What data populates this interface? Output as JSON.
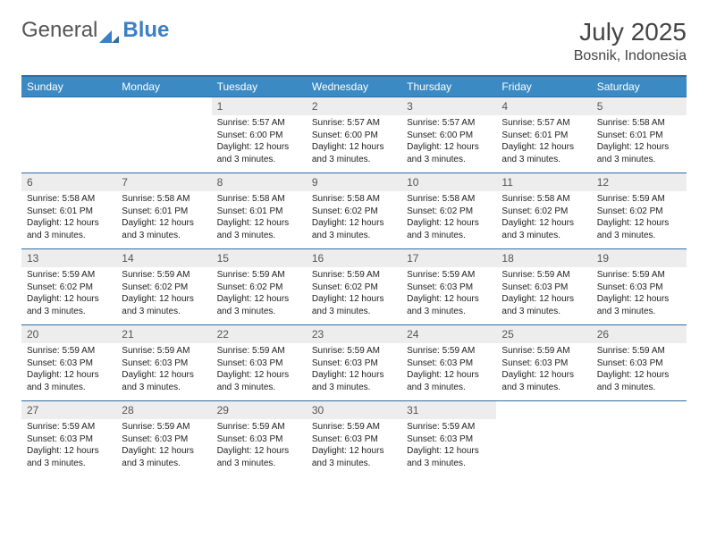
{
  "brand": {
    "part1": "General",
    "part2": "Blue"
  },
  "title": "July 2025",
  "location": "Bosnik, Indonesia",
  "colors": {
    "header_bg": "#3b8ac4",
    "header_fg": "#ffffff",
    "border": "#2e6da4",
    "daynum_bg": "#ededed",
    "text": "#222222"
  },
  "day_headers": [
    "Sunday",
    "Monday",
    "Tuesday",
    "Wednesday",
    "Thursday",
    "Friday",
    "Saturday"
  ],
  "weeks": [
    [
      null,
      null,
      {
        "n": "1",
        "sunrise": "Sunrise: 5:57 AM",
        "sunset": "Sunset: 6:00 PM",
        "day1": "Daylight: 12 hours",
        "day2": "and 3 minutes."
      },
      {
        "n": "2",
        "sunrise": "Sunrise: 5:57 AM",
        "sunset": "Sunset: 6:00 PM",
        "day1": "Daylight: 12 hours",
        "day2": "and 3 minutes."
      },
      {
        "n": "3",
        "sunrise": "Sunrise: 5:57 AM",
        "sunset": "Sunset: 6:00 PM",
        "day1": "Daylight: 12 hours",
        "day2": "and 3 minutes."
      },
      {
        "n": "4",
        "sunrise": "Sunrise: 5:57 AM",
        "sunset": "Sunset: 6:01 PM",
        "day1": "Daylight: 12 hours",
        "day2": "and 3 minutes."
      },
      {
        "n": "5",
        "sunrise": "Sunrise: 5:58 AM",
        "sunset": "Sunset: 6:01 PM",
        "day1": "Daylight: 12 hours",
        "day2": "and 3 minutes."
      }
    ],
    [
      {
        "n": "6",
        "sunrise": "Sunrise: 5:58 AM",
        "sunset": "Sunset: 6:01 PM",
        "day1": "Daylight: 12 hours",
        "day2": "and 3 minutes."
      },
      {
        "n": "7",
        "sunrise": "Sunrise: 5:58 AM",
        "sunset": "Sunset: 6:01 PM",
        "day1": "Daylight: 12 hours",
        "day2": "and 3 minutes."
      },
      {
        "n": "8",
        "sunrise": "Sunrise: 5:58 AM",
        "sunset": "Sunset: 6:01 PM",
        "day1": "Daylight: 12 hours",
        "day2": "and 3 minutes."
      },
      {
        "n": "9",
        "sunrise": "Sunrise: 5:58 AM",
        "sunset": "Sunset: 6:02 PM",
        "day1": "Daylight: 12 hours",
        "day2": "and 3 minutes."
      },
      {
        "n": "10",
        "sunrise": "Sunrise: 5:58 AM",
        "sunset": "Sunset: 6:02 PM",
        "day1": "Daylight: 12 hours",
        "day2": "and 3 minutes."
      },
      {
        "n": "11",
        "sunrise": "Sunrise: 5:58 AM",
        "sunset": "Sunset: 6:02 PM",
        "day1": "Daylight: 12 hours",
        "day2": "and 3 minutes."
      },
      {
        "n": "12",
        "sunrise": "Sunrise: 5:59 AM",
        "sunset": "Sunset: 6:02 PM",
        "day1": "Daylight: 12 hours",
        "day2": "and 3 minutes."
      }
    ],
    [
      {
        "n": "13",
        "sunrise": "Sunrise: 5:59 AM",
        "sunset": "Sunset: 6:02 PM",
        "day1": "Daylight: 12 hours",
        "day2": "and 3 minutes."
      },
      {
        "n": "14",
        "sunrise": "Sunrise: 5:59 AM",
        "sunset": "Sunset: 6:02 PM",
        "day1": "Daylight: 12 hours",
        "day2": "and 3 minutes."
      },
      {
        "n": "15",
        "sunrise": "Sunrise: 5:59 AM",
        "sunset": "Sunset: 6:02 PM",
        "day1": "Daylight: 12 hours",
        "day2": "and 3 minutes."
      },
      {
        "n": "16",
        "sunrise": "Sunrise: 5:59 AM",
        "sunset": "Sunset: 6:02 PM",
        "day1": "Daylight: 12 hours",
        "day2": "and 3 minutes."
      },
      {
        "n": "17",
        "sunrise": "Sunrise: 5:59 AM",
        "sunset": "Sunset: 6:03 PM",
        "day1": "Daylight: 12 hours",
        "day2": "and 3 minutes."
      },
      {
        "n": "18",
        "sunrise": "Sunrise: 5:59 AM",
        "sunset": "Sunset: 6:03 PM",
        "day1": "Daylight: 12 hours",
        "day2": "and 3 minutes."
      },
      {
        "n": "19",
        "sunrise": "Sunrise: 5:59 AM",
        "sunset": "Sunset: 6:03 PM",
        "day1": "Daylight: 12 hours",
        "day2": "and 3 minutes."
      }
    ],
    [
      {
        "n": "20",
        "sunrise": "Sunrise: 5:59 AM",
        "sunset": "Sunset: 6:03 PM",
        "day1": "Daylight: 12 hours",
        "day2": "and 3 minutes."
      },
      {
        "n": "21",
        "sunrise": "Sunrise: 5:59 AM",
        "sunset": "Sunset: 6:03 PM",
        "day1": "Daylight: 12 hours",
        "day2": "and 3 minutes."
      },
      {
        "n": "22",
        "sunrise": "Sunrise: 5:59 AM",
        "sunset": "Sunset: 6:03 PM",
        "day1": "Daylight: 12 hours",
        "day2": "and 3 minutes."
      },
      {
        "n": "23",
        "sunrise": "Sunrise: 5:59 AM",
        "sunset": "Sunset: 6:03 PM",
        "day1": "Daylight: 12 hours",
        "day2": "and 3 minutes."
      },
      {
        "n": "24",
        "sunrise": "Sunrise: 5:59 AM",
        "sunset": "Sunset: 6:03 PM",
        "day1": "Daylight: 12 hours",
        "day2": "and 3 minutes."
      },
      {
        "n": "25",
        "sunrise": "Sunrise: 5:59 AM",
        "sunset": "Sunset: 6:03 PM",
        "day1": "Daylight: 12 hours",
        "day2": "and 3 minutes."
      },
      {
        "n": "26",
        "sunrise": "Sunrise: 5:59 AM",
        "sunset": "Sunset: 6:03 PM",
        "day1": "Daylight: 12 hours",
        "day2": "and 3 minutes."
      }
    ],
    [
      {
        "n": "27",
        "sunrise": "Sunrise: 5:59 AM",
        "sunset": "Sunset: 6:03 PM",
        "day1": "Daylight: 12 hours",
        "day2": "and 3 minutes."
      },
      {
        "n": "28",
        "sunrise": "Sunrise: 5:59 AM",
        "sunset": "Sunset: 6:03 PM",
        "day1": "Daylight: 12 hours",
        "day2": "and 3 minutes."
      },
      {
        "n": "29",
        "sunrise": "Sunrise: 5:59 AM",
        "sunset": "Sunset: 6:03 PM",
        "day1": "Daylight: 12 hours",
        "day2": "and 3 minutes."
      },
      {
        "n": "30",
        "sunrise": "Sunrise: 5:59 AM",
        "sunset": "Sunset: 6:03 PM",
        "day1": "Daylight: 12 hours",
        "day2": "and 3 minutes."
      },
      {
        "n": "31",
        "sunrise": "Sunrise: 5:59 AM",
        "sunset": "Sunset: 6:03 PM",
        "day1": "Daylight: 12 hours",
        "day2": "and 3 minutes."
      },
      null,
      null
    ]
  ]
}
